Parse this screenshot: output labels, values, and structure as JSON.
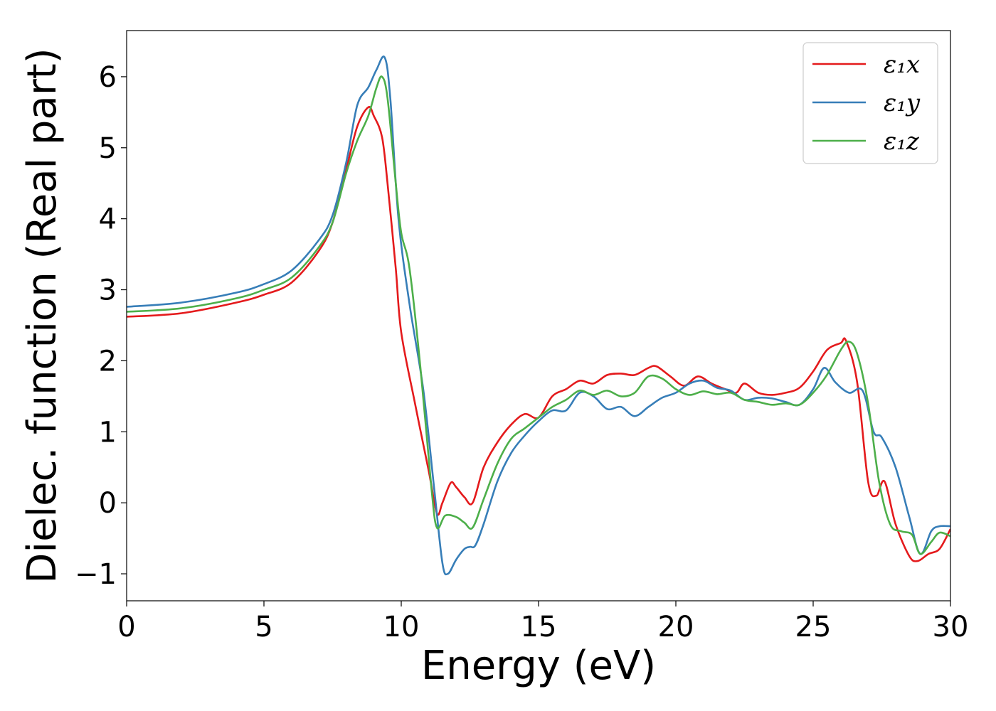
{
  "chart_data": {
    "type": "line",
    "title": "",
    "xlabel": "Energy (eV)",
    "ylabel": "Dielec. function (Real part)",
    "xlim": [
      0,
      30
    ],
    "ylim": [
      -1.38,
      6.65
    ],
    "xticks": [
      0,
      5,
      10,
      15,
      20,
      25,
      30
    ],
    "xtick_labels": [
      "0",
      "5",
      "10",
      "15",
      "20",
      "25",
      "30"
    ],
    "yticks": [
      -1,
      0,
      1,
      2,
      3,
      4,
      5,
      6
    ],
    "ytick_labels": [
      "−1",
      "0",
      "1",
      "2",
      "3",
      "4",
      "5",
      "6"
    ],
    "grid": false,
    "legend_position": "top-right",
    "series": [
      {
        "name": "ε₁x",
        "color": "#e41a1c",
        "x": [
          0,
          2,
          4,
          5,
          6,
          7,
          7.5,
          8,
          8.4,
          8.8,
          9.0,
          9.3,
          9.5,
          9.8,
          10.0,
          10.5,
          11.0,
          11.3,
          11.5,
          11.8,
          12.0,
          12.3,
          12.6,
          13.0,
          13.5,
          14.0,
          14.5,
          15.0,
          15.5,
          16.0,
          16.5,
          17.0,
          17.5,
          18.0,
          18.5,
          19.0,
          19.3,
          19.8,
          20.3,
          20.8,
          21.3,
          21.8,
          22.2,
          22.5,
          23.0,
          23.5,
          24.0,
          24.5,
          25.0,
          25.5,
          26.0,
          26.2,
          26.6,
          27.0,
          27.3,
          27.6,
          28.0,
          28.5,
          28.8,
          29.2,
          29.6,
          30.0
        ],
        "y": [
          2.62,
          2.67,
          2.82,
          2.93,
          3.1,
          3.55,
          3.95,
          4.7,
          5.3,
          5.57,
          5.45,
          5.15,
          4.5,
          3.3,
          2.4,
          1.4,
          0.45,
          -0.15,
          0.0,
          0.28,
          0.22,
          0.08,
          0.0,
          0.5,
          0.85,
          1.1,
          1.25,
          1.2,
          1.5,
          1.6,
          1.72,
          1.68,
          1.8,
          1.82,
          1.8,
          1.9,
          1.92,
          1.78,
          1.65,
          1.78,
          1.68,
          1.6,
          1.55,
          1.68,
          1.55,
          1.52,
          1.55,
          1.62,
          1.85,
          2.15,
          2.25,
          2.28,
          1.7,
          0.3,
          0.1,
          0.3,
          -0.3,
          -0.75,
          -0.82,
          -0.72,
          -0.65,
          -0.37
        ]
      },
      {
        "name": "ε₁y",
        "color": "#377eb8",
        "x": [
          0,
          2,
          4,
          5,
          6,
          7,
          7.5,
          8,
          8.4,
          8.8,
          9.1,
          9.4,
          9.6,
          9.9,
          10.3,
          10.8,
          11.2,
          11.5,
          11.7,
          12.0,
          12.3,
          12.5,
          12.7,
          13.0,
          13.5,
          14.0,
          14.5,
          15.0,
          15.5,
          16.0,
          16.5,
          17.0,
          17.5,
          18.0,
          18.5,
          19.0,
          19.5,
          20.0,
          20.5,
          21.0,
          21.5,
          22.0,
          22.5,
          23.0,
          23.5,
          24.0,
          24.5,
          25.0,
          25.4,
          25.8,
          26.3,
          26.8,
          27.2,
          27.5,
          28.0,
          28.5,
          28.9,
          29.3,
          29.6,
          30.0
        ],
        "y": [
          2.76,
          2.82,
          2.96,
          3.08,
          3.27,
          3.7,
          4.05,
          4.8,
          5.6,
          5.85,
          6.1,
          6.27,
          5.7,
          4.0,
          2.8,
          1.6,
          0.2,
          -0.85,
          -1.0,
          -0.8,
          -0.65,
          -0.62,
          -0.6,
          -0.3,
          0.3,
          0.7,
          0.95,
          1.15,
          1.3,
          1.3,
          1.55,
          1.5,
          1.32,
          1.35,
          1.22,
          1.35,
          1.48,
          1.55,
          1.68,
          1.72,
          1.62,
          1.58,
          1.45,
          1.48,
          1.47,
          1.42,
          1.38,
          1.6,
          1.9,
          1.7,
          1.55,
          1.58,
          1.0,
          0.92,
          0.5,
          -0.2,
          -0.72,
          -0.4,
          -0.33,
          -0.33
        ]
      },
      {
        "name": "ε₁z",
        "color": "#4daf4a",
        "x": [
          0,
          2,
          4,
          5,
          6,
          7,
          7.5,
          8,
          8.4,
          8.8,
          9.1,
          9.3,
          9.5,
          9.8,
          10.0,
          10.3,
          10.7,
          11.1,
          11.3,
          11.6,
          12.0,
          12.3,
          12.6,
          13.0,
          13.5,
          14.0,
          14.5,
          15.0,
          15.5,
          16.0,
          16.5,
          17.0,
          17.5,
          18.0,
          18.5,
          19.0,
          19.5,
          20.0,
          20.5,
          21.0,
          21.5,
          22.0,
          22.5,
          23.0,
          23.5,
          24.0,
          24.5,
          25.0,
          25.5,
          26.0,
          26.3,
          26.6,
          27.0,
          27.4,
          27.8,
          28.2,
          28.6,
          28.9,
          29.3,
          29.6,
          30.0
        ],
        "y": [
          2.69,
          2.74,
          2.88,
          3.0,
          3.17,
          3.6,
          3.95,
          4.65,
          5.1,
          5.45,
          5.85,
          6.0,
          5.7,
          4.5,
          3.8,
          3.3,
          1.9,
          0.2,
          -0.35,
          -0.18,
          -0.2,
          -0.28,
          -0.35,
          0.05,
          0.55,
          0.9,
          1.05,
          1.2,
          1.35,
          1.45,
          1.58,
          1.52,
          1.58,
          1.5,
          1.55,
          1.78,
          1.75,
          1.6,
          1.52,
          1.57,
          1.53,
          1.55,
          1.45,
          1.42,
          1.38,
          1.4,
          1.38,
          1.55,
          1.8,
          2.15,
          2.27,
          2.1,
          1.4,
          0.3,
          -0.3,
          -0.4,
          -0.45,
          -0.72,
          -0.55,
          -0.42,
          -0.47
        ]
      }
    ]
  }
}
